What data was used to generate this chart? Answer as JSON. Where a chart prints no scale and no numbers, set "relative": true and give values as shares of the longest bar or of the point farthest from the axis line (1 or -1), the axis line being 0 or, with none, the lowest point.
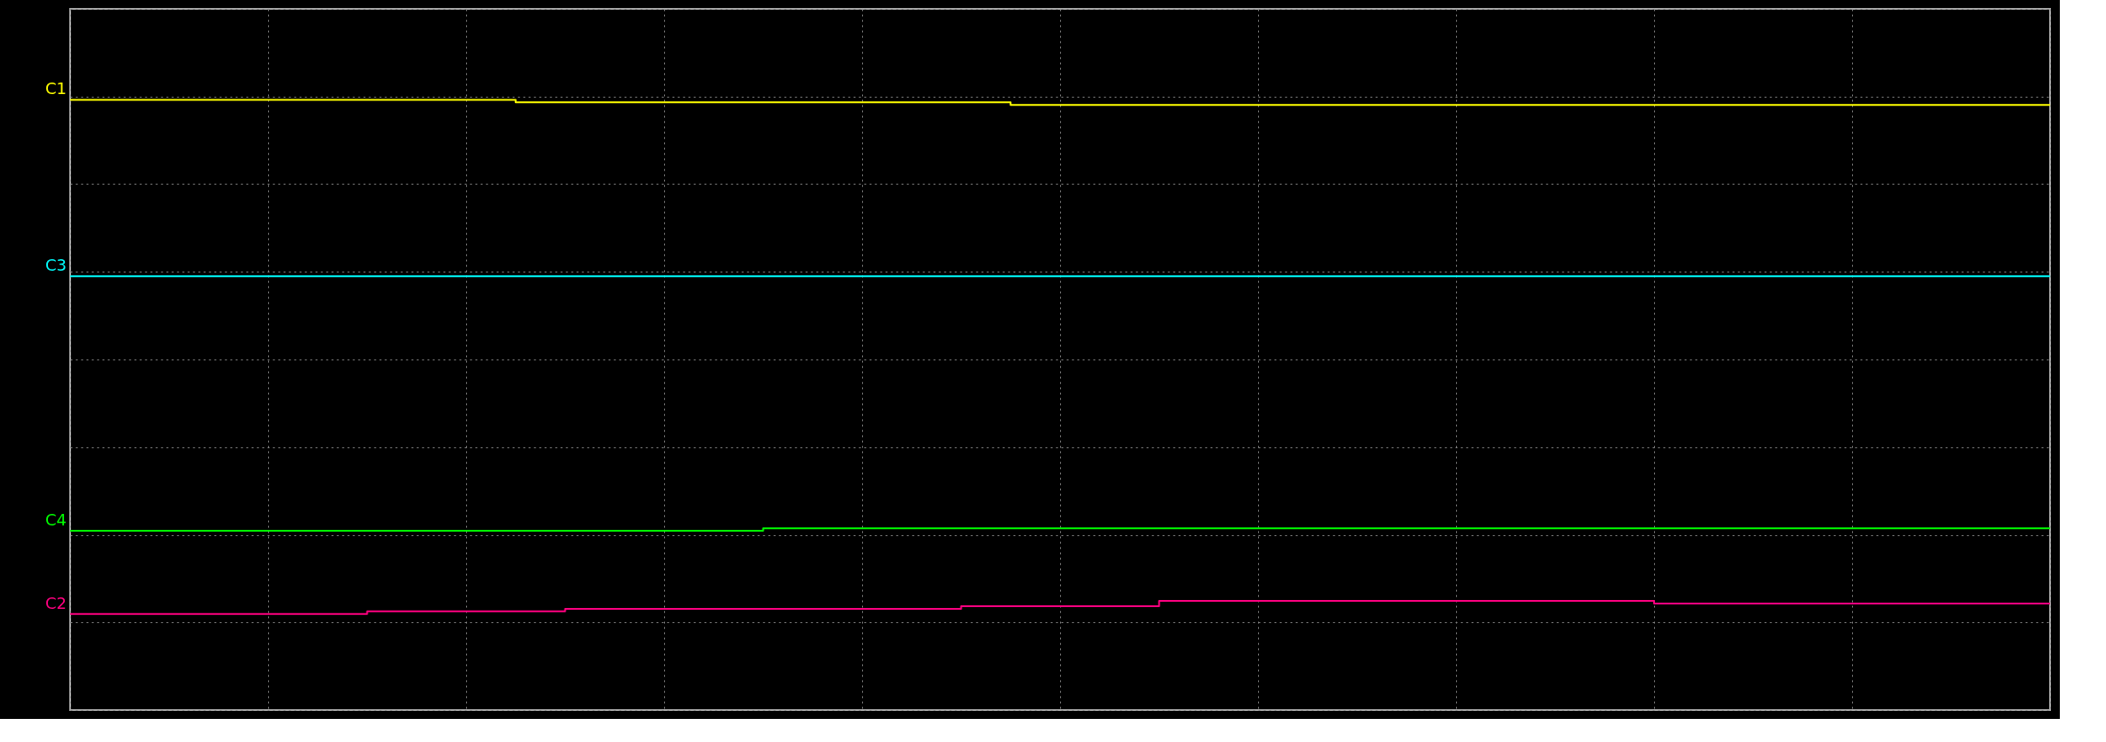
{
  "chart_data": {
    "type": "step",
    "relative": true,
    "grid": true,
    "categories": [
      null,
      null,
      null,
      null,
      null,
      null,
      null,
      null,
      null,
      null,
      null,
      null,
      null,
      null,
      null,
      null,
      null,
      null,
      null,
      null,
      null,
      null,
      null,
      null,
      null,
      null,
      null,
      null,
      null,
      null,
      null,
      null,
      null,
      null,
      null,
      null,
      null,
      null,
      null,
      null,
      null
    ],
    "series": [
      {
        "name": "C1",
        "color": "#ffff00",
        "values": [
          1,
          1,
          1,
          1,
          1,
          1,
          1,
          1,
          1,
          0.99,
          0.99,
          0.99,
          0.99,
          0.99,
          0.99,
          0.99,
          0.99,
          0.99,
          0.99,
          0.98,
          0.98,
          0.98,
          0.98,
          0.98,
          0.98,
          0.98,
          0.98,
          0.98,
          0.98,
          0.98,
          0.98,
          0.98,
          0.98,
          0.98,
          0.98,
          0.98,
          0.98,
          0.98,
          0.98,
          0.98,
          0.98
        ]
      },
      {
        "name": "C3",
        "color": "#00ffff",
        "values": [
          0.32,
          0.32,
          0.32,
          0.32,
          0.32,
          0.32,
          0.32,
          0.32,
          0.32,
          0.32,
          0.32,
          0.32,
          0.32,
          0.32,
          0.32,
          0.32,
          0.32,
          0.32,
          0.32,
          0.32,
          0.32,
          0.32,
          0.32,
          0.32,
          0.32,
          0.32,
          0.32,
          0.32,
          0.32,
          0.32,
          0.32,
          0.32,
          0.32,
          0.32,
          0.32,
          0.32,
          0.32,
          0.32,
          0.32,
          0.32,
          0.32
        ]
      },
      {
        "name": "C4",
        "color": "#00ff00",
        "values": [
          -0.66,
          -0.66,
          -0.66,
          -0.66,
          -0.66,
          -0.66,
          -0.66,
          -0.66,
          -0.66,
          -0.66,
          -0.66,
          -0.66,
          -0.66,
          -0.66,
          -0.65,
          -0.65,
          -0.65,
          -0.65,
          -0.65,
          -0.65,
          -0.65,
          -0.65,
          -0.65,
          -0.65,
          -0.65,
          -0.65,
          -0.65,
          -0.65,
          -0.65,
          -0.65,
          -0.65,
          -0.65,
          -0.65,
          -0.65,
          -0.65,
          -0.65,
          -0.65,
          -0.65,
          -0.65,
          -0.65,
          -0.65
        ]
      },
      {
        "name": "C2",
        "color": "#ff0080",
        "values": [
          -0.98,
          -0.98,
          -0.98,
          -0.98,
          -0.98,
          -0.98,
          -0.97,
          -0.97,
          -0.97,
          -0.97,
          -0.96,
          -0.96,
          -0.96,
          -0.96,
          -0.96,
          -0.96,
          -0.96,
          -0.96,
          -0.95,
          -0.95,
          -0.95,
          -0.95,
          -0.93,
          -0.93,
          -0.93,
          -0.93,
          -0.93,
          -0.93,
          -0.93,
          -0.93,
          -0.93,
          -0.93,
          -0.94,
          -0.94,
          -0.94,
          -0.94,
          -0.94,
          -0.94,
          -0.94,
          -0.94,
          -0.94
        ]
      }
    ]
  }
}
